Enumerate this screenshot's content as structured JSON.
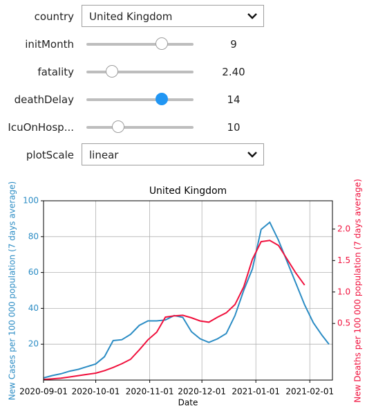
{
  "controls": [
    {
      "label": "country",
      "value": "United Kingdom"
    },
    {
      "label": "initMonth",
      "value": "9"
    },
    {
      "label": "fatality",
      "value": "2.40"
    },
    {
      "label": "deathDelay",
      "value": "14"
    },
    {
      "label": "IcuOnHosp...",
      "value": "10"
    },
    {
      "label": "plotScale",
      "value": "linear"
    }
  ],
  "chart_data": {
    "type": "line",
    "title": "United Kingdom",
    "xlabel": "Date",
    "ylabel": "New Cases per 100 000 population (7 days average)",
    "y2label": "New Deaths per 100 000 population (7 days average)",
    "x": [
      "2020-09-01",
      "2020-09-06",
      "2020-09-11",
      "2020-09-16",
      "2020-09-21",
      "2020-09-26",
      "2020-10-01",
      "2020-10-06",
      "2020-10-11",
      "2020-10-16",
      "2020-10-21",
      "2020-10-26",
      "2020-10-31",
      "2020-11-05",
      "2020-11-10",
      "2020-11-15",
      "2020-11-20",
      "2020-11-25",
      "2020-11-30",
      "2020-12-05",
      "2020-12-10",
      "2020-12-15",
      "2020-12-20",
      "2020-12-25",
      "2020-12-30",
      "2021-01-04",
      "2021-01-09",
      "2021-01-14",
      "2021-01-19",
      "2021-01-24",
      "2021-01-29",
      "2021-02-03",
      "2021-02-08",
      "2021-02-12"
    ],
    "series": [
      {
        "name": "New Cases",
        "color": "#2b8cc4",
        "values": [
          1.2,
          2.5,
          3.5,
          5,
          6,
          7.5,
          9,
          13,
          22,
          22.5,
          25.5,
          30.5,
          33,
          33,
          33.5,
          36,
          35,
          27,
          23,
          21,
          23,
          26,
          36,
          50,
          62,
          84,
          88,
          78,
          66,
          54,
          42,
          32,
          25,
          20
        ]
      },
      {
        "name": "New Deaths",
        "color": "#f0103c",
        "axis": "y2",
        "values": [
          -0.39,
          -0.38,
          -0.37,
          -0.35,
          -0.33,
          -0.31,
          -0.29,
          -0.25,
          -0.2,
          -0.14,
          -0.07,
          0.08,
          0.24,
          0.36,
          0.6,
          0.62,
          0.63,
          0.59,
          0.54,
          0.52,
          0.6,
          0.67,
          0.8,
          1.08,
          1.52,
          1.8,
          1.82,
          1.74,
          1.52,
          1.3,
          1.11,
          null,
          null,
          null
        ]
      }
    ],
    "xlim": [
      "2020-09-01",
      "2021-02-14"
    ],
    "xticks": [
      "2020-09-01",
      "2020-10-01",
      "2020-11-01",
      "2020-12-01",
      "2021-01-01",
      "2021-02-01"
    ],
    "ylim": [
      0,
      100
    ],
    "yticks": [
      20,
      40,
      60,
      80,
      100
    ],
    "y2lim": [
      -0.4,
      2.45
    ],
    "y2ticks": [
      0.5,
      {
        "value": 1,
        "label": "1.0"
      },
      1.5,
      {
        "value": 2,
        "label": "2.0"
      }
    ],
    "grid": true
  }
}
